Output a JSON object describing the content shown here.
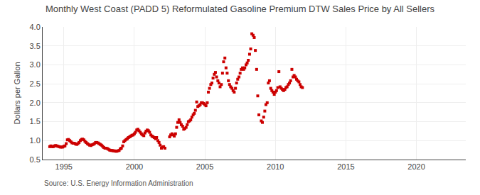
{
  "chart_data": {
    "type": "scatter",
    "title": "Monthly West Coast (PADD 5) Reformulated Gasoline Premium DTW Sales Price by All Sellers",
    "ylabel": "Dollars per Gallon",
    "annotations": [
      "Source: U.S. Energy Information Administration"
    ],
    "xlim": [
      1993.5,
      2023.5
    ],
    "ylim": [
      0.5,
      4.0
    ],
    "xticks": [
      1995,
      2000,
      2005,
      2010,
      2015,
      2020
    ],
    "yticks": [
      0.5,
      {
        "value": 1.0,
        "label": "1.0"
      },
      1.5,
      {
        "value": 2.0,
        "label": "2.0"
      },
      2.5,
      {
        "value": 3.0,
        "label": "3.0"
      },
      3.5,
      {
        "value": 4.0,
        "label": "4.0"
      }
    ],
    "grid": true,
    "color": "#cc0000",
    "marker": "square",
    "x": [
      1994.0,
      1994.08,
      1994.17,
      1994.25,
      1994.33,
      1994.42,
      1994.5,
      1994.58,
      1994.67,
      1994.75,
      1994.83,
      1994.92,
      1995.0,
      1995.08,
      1995.17,
      1995.25,
      1995.33,
      1995.42,
      1995.5,
      1995.58,
      1995.67,
      1995.75,
      1995.83,
      1995.92,
      1996.0,
      1996.08,
      1996.17,
      1996.25,
      1996.33,
      1996.42,
      1996.5,
      1996.58,
      1996.67,
      1996.75,
      1996.83,
      1996.92,
      1997.0,
      1997.08,
      1997.17,
      1997.25,
      1997.33,
      1997.42,
      1997.5,
      1997.58,
      1997.67,
      1997.75,
      1997.83,
      1997.92,
      1998.0,
      1998.08,
      1998.17,
      1998.25,
      1998.33,
      1998.42,
      1998.5,
      1998.58,
      1998.67,
      1998.75,
      1998.83,
      1998.92,
      1999.0,
      1999.08,
      1999.17,
      1999.25,
      1999.33,
      1999.42,
      1999.5,
      1999.58,
      1999.67,
      1999.75,
      1999.83,
      1999.92,
      2000.0,
      2000.08,
      2000.17,
      2000.25,
      2000.33,
      2000.42,
      2000.5,
      2000.58,
      2000.67,
      2000.75,
      2000.83,
      2000.92,
      2001.0,
      2001.08,
      2001.17,
      2001.25,
      2001.33,
      2001.42,
      2001.5,
      2001.58,
      2001.67,
      2001.75,
      2001.83,
      2001.92,
      2002.0,
      2002.08,
      2002.17,
      2002.5,
      2002.58,
      2002.67,
      2002.75,
      2002.83,
      2002.92,
      2003.0,
      2003.08,
      2003.17,
      2003.25,
      2003.33,
      2003.42,
      2003.5,
      2003.58,
      2003.67,
      2003.75,
      2003.83,
      2003.92,
      2004.0,
      2004.08,
      2004.17,
      2004.25,
      2004.33,
      2004.42,
      2004.5,
      2004.58,
      2004.67,
      2004.75,
      2004.83,
      2004.92,
      2005.0,
      2005.08,
      2005.17,
      2005.25,
      2005.33,
      2005.42,
      2005.5,
      2005.58,
      2005.67,
      2005.75,
      2005.83,
      2005.92,
      2006.0,
      2006.08,
      2006.17,
      2006.25,
      2006.33,
      2006.42,
      2006.5,
      2006.58,
      2006.67,
      2006.75,
      2006.83,
      2006.92,
      2007.0,
      2007.08,
      2007.17,
      2007.25,
      2007.33,
      2007.42,
      2007.5,
      2007.58,
      2007.67,
      2007.75,
      2007.83,
      2007.92,
      2008.0,
      2008.08,
      2008.17,
      2008.25,
      2008.33,
      2008.42,
      2008.5,
      2008.58,
      2008.67,
      2008.75,
      2008.83,
      2009.0,
      2009.08,
      2009.17,
      2009.25,
      2009.33,
      2009.42,
      2009.5,
      2009.58,
      2009.67,
      2009.75,
      2009.83,
      2009.92,
      2010.0,
      2010.08,
      2010.17,
      2010.25,
      2010.33,
      2010.42,
      2010.5,
      2010.58,
      2010.67,
      2010.75,
      2010.83,
      2010.92,
      2011.0,
      2011.08,
      2011.17,
      2011.25,
      2011.33,
      2011.42,
      2011.5,
      2011.58,
      2011.67,
      2011.75,
      2011.83,
      2011.92
    ],
    "values": [
      0.84,
      0.86,
      0.84,
      0.84,
      0.86,
      0.87,
      0.86,
      0.85,
      0.84,
      0.83,
      0.83,
      0.83,
      0.85,
      0.86,
      0.92,
      1.02,
      1.03,
      1.0,
      0.97,
      0.94,
      0.93,
      0.93,
      0.91,
      0.9,
      0.92,
      0.95,
      1.0,
      1.03,
      1.04,
      1.02,
      0.98,
      0.95,
      0.92,
      0.9,
      0.88,
      0.87,
      0.89,
      0.9,
      0.92,
      0.95,
      0.95,
      0.94,
      0.92,
      0.9,
      0.88,
      0.85,
      0.82,
      0.8,
      0.8,
      0.79,
      0.77,
      0.75,
      0.74,
      0.74,
      0.73,
      0.73,
      0.72,
      0.72,
      0.73,
      0.74,
      0.78,
      0.8,
      0.86,
      0.97,
      1.0,
      1.03,
      1.05,
      1.08,
      1.1,
      1.12,
      1.14,
      1.15,
      1.18,
      1.22,
      1.28,
      1.3,
      1.26,
      1.22,
      1.18,
      1.15,
      1.13,
      1.2,
      1.25,
      1.28,
      1.26,
      1.22,
      1.15,
      1.12,
      1.1,
      1.08,
      1.05,
      1.08,
      1.0,
      0.95,
      0.88,
      0.8,
      0.83,
      0.84,
      0.8,
      1.1,
      1.15,
      1.18,
      1.15,
      1.12,
      1.18,
      1.35,
      1.48,
      1.55,
      1.48,
      1.42,
      1.38,
      1.3,
      1.32,
      1.35,
      1.42,
      1.5,
      1.52,
      1.55,
      1.62,
      1.68,
      1.72,
      1.8,
      2.02,
      1.9,
      1.92,
      1.95,
      2.0,
      2.0,
      1.98,
      1.95,
      1.92,
      2.0,
      2.28,
      2.38,
      2.48,
      2.52,
      2.65,
      2.75,
      2.8,
      2.68,
      2.58,
      2.52,
      2.42,
      2.48,
      2.78,
      3.08,
      3.18,
      2.92,
      2.78,
      2.58,
      2.48,
      2.42,
      2.38,
      2.32,
      2.28,
      2.38,
      2.52,
      2.62,
      2.68,
      2.78,
      2.88,
      2.92,
      2.88,
      2.92,
      3.0,
      3.05,
      3.12,
      3.28,
      3.42,
      3.82,
      3.78,
      3.72,
      3.38,
      2.88,
      2.18,
      1.68,
      1.52,
      1.48,
      1.62,
      1.78,
      1.95,
      2.0,
      2.52,
      2.58,
      2.38,
      2.32,
      2.28,
      2.22,
      2.28,
      2.32,
      2.4,
      2.82,
      2.42,
      2.38,
      2.35,
      2.32,
      2.35,
      2.4,
      2.42,
      2.48,
      2.52,
      2.58,
      2.88,
      2.68,
      2.72,
      2.68,
      2.62,
      2.58,
      2.55,
      2.48,
      2.42,
      2.4
    ]
  }
}
